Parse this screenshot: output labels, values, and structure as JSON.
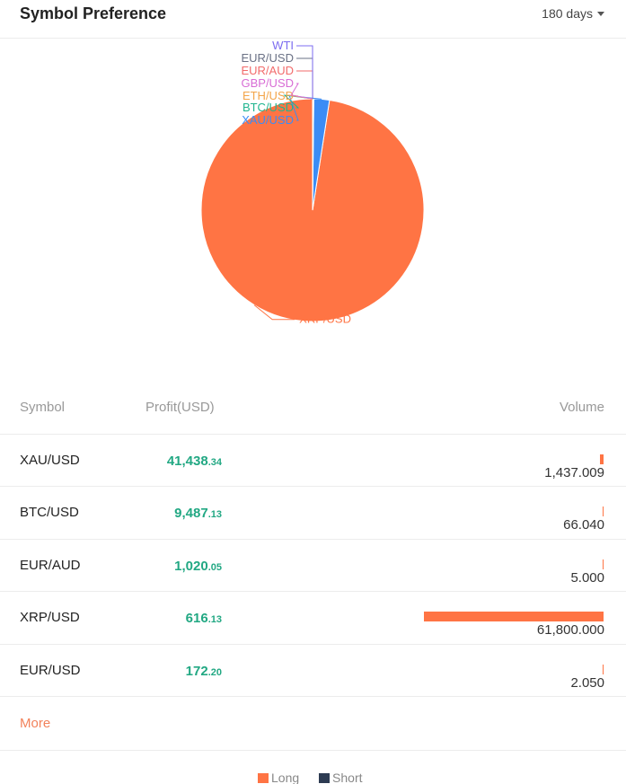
{
  "header": {
    "title": "Symbol Preference",
    "period": "180 days"
  },
  "chart_data": {
    "type": "pie",
    "slices": [
      {
        "label": "XRP/USD",
        "value": 61800.0,
        "color": "#ff7444"
      },
      {
        "label": "XAU/USD",
        "value": 1437.009,
        "color": "#3b8cf5"
      },
      {
        "label": "BTC/USD",
        "value": 66.04,
        "color": "#20b58f"
      },
      {
        "label": "ETH/USD",
        "value": 20,
        "color": "#f3a54a"
      },
      {
        "label": "GBP/USD",
        "value": 12,
        "color": "#d86cd5"
      },
      {
        "label": "EUR/AUD",
        "value": 5.0,
        "color": "#f26b6b"
      },
      {
        "label": "EUR/USD",
        "value": 2.05,
        "color": "#6a7185"
      },
      {
        "label": "WTI",
        "value": 1,
        "color": "#7c6cf0"
      }
    ]
  },
  "table": {
    "headers": {
      "symbol": "Symbol",
      "profit": "Profit(USD)",
      "volume": "Volume"
    },
    "rows": [
      {
        "symbol": "XAU/USD",
        "profit_int": "41,438",
        "profit_dec": ".34",
        "volume": "1,437.009",
        "long_volume": 1437.009
      },
      {
        "symbol": "BTC/USD",
        "profit_int": "9,487",
        "profit_dec": ".13",
        "volume": "66.040",
        "long_volume": 66.04
      },
      {
        "symbol": "EUR/AUD",
        "profit_int": "1,020",
        "profit_dec": ".05",
        "volume": "5.000",
        "long_volume": 5.0
      },
      {
        "symbol": "XRP/USD",
        "profit_int": "616",
        "profit_dec": ".13",
        "volume": "61,800.000",
        "long_volume": 61800.0
      },
      {
        "symbol": "EUR/USD",
        "profit_int": "172",
        "profit_dec": ".20",
        "volume": "2.050",
        "long_volume": 2.05
      }
    ],
    "max_volume": 61800.0
  },
  "more_label": "More",
  "legend": {
    "long": {
      "label": "Long",
      "color": "#ff7444"
    },
    "short": {
      "label": "Short",
      "color": "#2d3b52"
    }
  }
}
